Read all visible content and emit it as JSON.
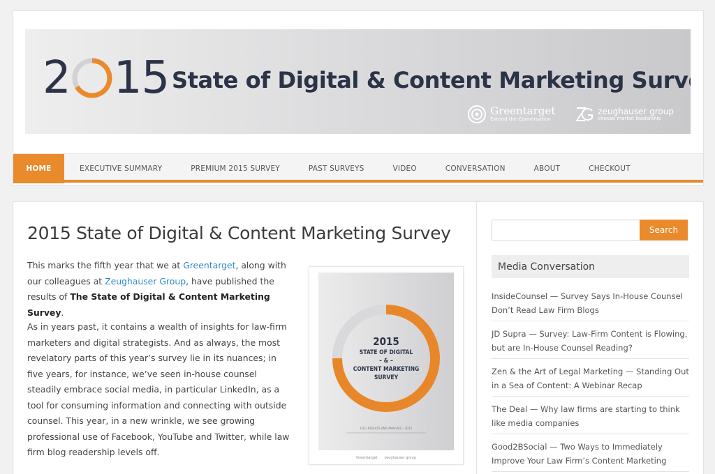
{
  "banner": {
    "year_left": "2",
    "year_right": "15",
    "title": "State of Digital & Content Marketing Survey",
    "logos": [
      {
        "name": "Greentarget",
        "tagline": "Extend the Conversation"
      },
      {
        "name": "zeughauser group",
        "tagline": "choose market leadership"
      }
    ]
  },
  "nav": {
    "items": [
      {
        "label": "HOME",
        "active": true
      },
      {
        "label": "EXECUTIVE SUMMARY"
      },
      {
        "label": "PREMIUM 2015 SURVEY"
      },
      {
        "label": "PAST SURVEYS"
      },
      {
        "label": "VIDEO"
      },
      {
        "label": "CONVERSATION"
      },
      {
        "label": "ABOUT"
      },
      {
        "label": "CHECKOUT"
      }
    ]
  },
  "article": {
    "title": "2015 State of Digital & Content Marketing Survey",
    "p1": {
      "t1": "This marks the fifth year that we at ",
      "link1": "Greentarget",
      "t2": ", along with our colleagues at ",
      "link2": "Zeughauser Group",
      "t3": ", have published the results of ",
      "bold": "The State of Digital & Content Marketing Survey",
      "t4": "."
    },
    "p2": "As in years past, it contains a wealth of insights for law-firm marketers and digital strategists. And as always, the most revelatory parts of this year’s survey lie in its nuances; in five years, for instance, we’ve seen in-house counsel steadily embrace social media, in particular LinkedIn, as a tool for consuming information and connecting with outside counsel. This year, in a new wrinkle, we see growing professional use of Facebook, YouTube and Twitter, while law firm blog readership levels off."
  },
  "cover": {
    "year": "2015",
    "line1": "STATE OF DIGITAL",
    "line2": "– & –",
    "line3": "CONTENT MARKETING",
    "line4": "SURVEY",
    "footer": "FULL RESULTS AND ANALYSIS – 2015",
    "logo1": "Greentarget",
    "logo2": "zeughauser group"
  },
  "sidebar": {
    "search_placeholder": "",
    "search_button": "Search",
    "widget_title": "Media Conversation",
    "items": [
      "InsideCounsel — Survey Says In-House Counsel Don’t Read Law Firm Blogs",
      "JD Supra — Survey: Law-Firm Content is Flowing, but are In-House Counsel Reading?",
      "Zen & the Art of Legal Marketing — Standing Out in a Sea of Content: A Webinar Recap",
      "The Deal — Why law firms are starting to think like media companies",
      "Good2BSocial — Two Ways to Immediately Improve Your Law Firm’s Content Marketing"
    ]
  },
  "colors": {
    "accent": "#e98a2c",
    "navy": "#2b3347",
    "link": "#2f8bc6"
  }
}
